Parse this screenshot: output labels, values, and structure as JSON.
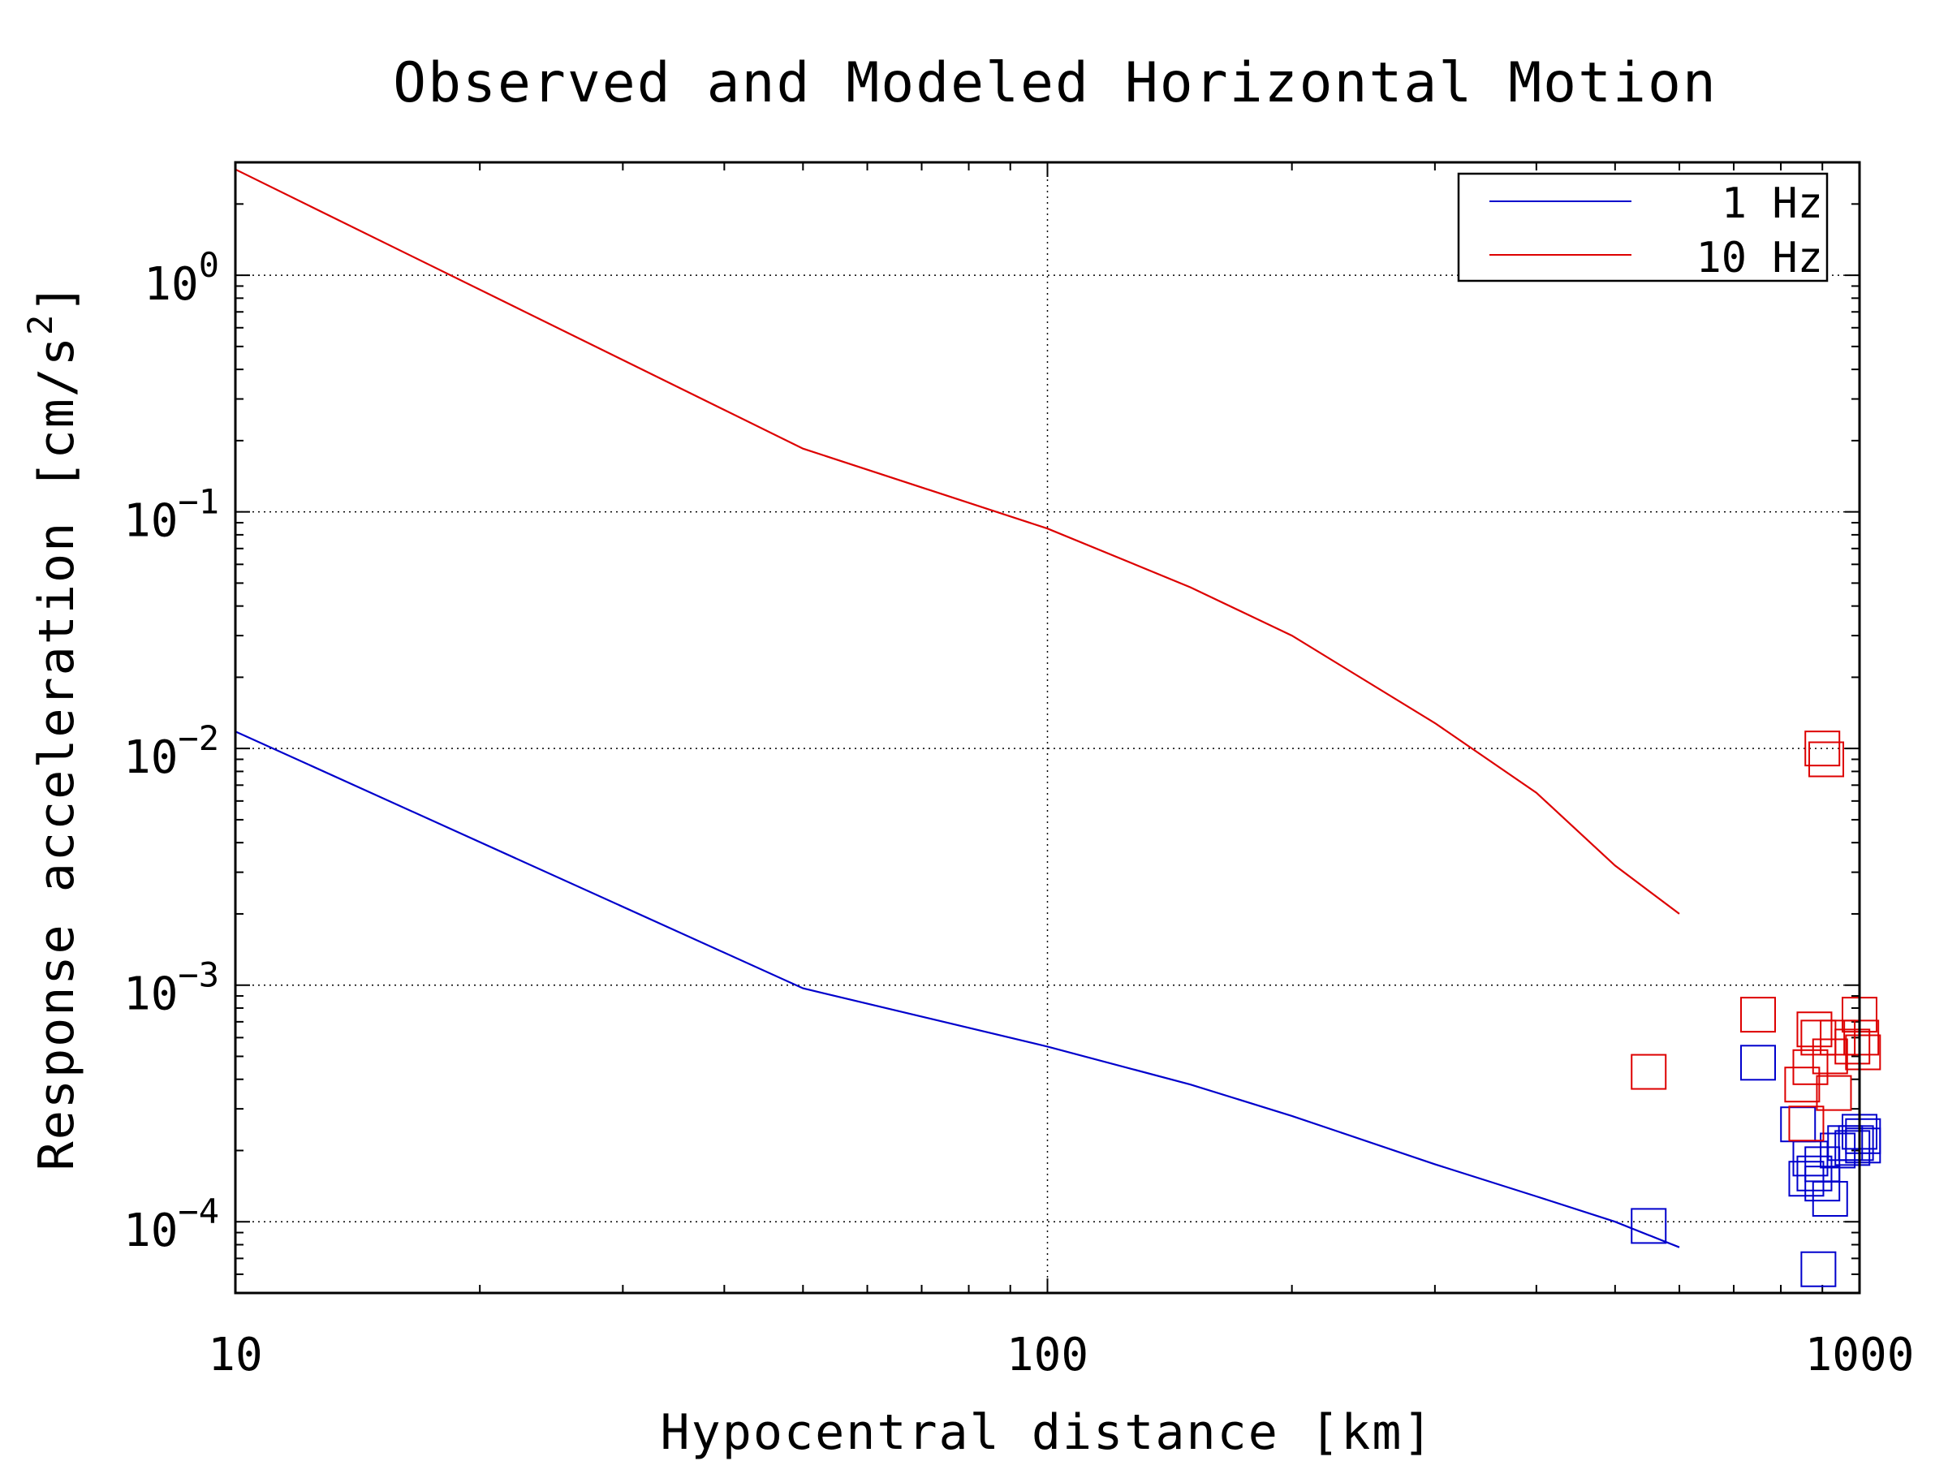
{
  "chart_data": {
    "type": "line",
    "title": "Observed and Modeled Horizontal Motion",
    "xlabel": "Hypocentral distance [km]",
    "ylabel": "Response acceleration [cm/s",
    "ylabel_superscript": "2",
    "ylabel_suffix": "]",
    "xscale": "log",
    "yscale": "log",
    "xlim": [
      10,
      1000
    ],
    "ylim": [
      5e-05,
      3
    ],
    "x_ticks": [
      {
        "value": 10,
        "label": "10"
      },
      {
        "value": 100,
        "label": "100"
      },
      {
        "value": 1000,
        "label": "1000"
      }
    ],
    "y_ticks": [
      {
        "value": 0.0001,
        "base": "10",
        "exp": "−4"
      },
      {
        "value": 0.001,
        "base": "10",
        "exp": "−3"
      },
      {
        "value": 0.01,
        "base": "10",
        "exp": "−2"
      },
      {
        "value": 0.1,
        "base": "10",
        "exp": "−1"
      },
      {
        "value": 1,
        "base": "10",
        "exp": "0"
      }
    ],
    "grid": true,
    "legend_position": "top-right",
    "series": [
      {
        "name": "1 Hz",
        "color": "#0000cc",
        "kind": "line",
        "x": [
          10,
          50,
          100,
          150,
          200,
          300,
          400,
          500,
          600
        ],
        "y": [
          0.0118,
          0.00097,
          0.00055,
          0.00038,
          0.00028,
          0.000175,
          0.000128,
          0.0001,
          7.8e-05
        ]
      },
      {
        "name": "10 Hz",
        "color": "#dd0000",
        "kind": "line",
        "x": [
          10,
          50,
          100,
          150,
          200,
          300,
          400,
          500,
          600
        ],
        "y": [
          2.8,
          0.185,
          0.085,
          0.048,
          0.03,
          0.0128,
          0.0065,
          0.0032,
          0.002
        ]
      }
    ],
    "observations": [
      {
        "series": "1 Hz",
        "color": "#0000cc",
        "marker": "square",
        "x": [
          550,
          750,
          840,
          860,
          870,
          880,
          890,
          900,
          900,
          920,
          940,
          960,
          980,
          990,
          1000,
          1010,
          1010
        ],
        "y": [
          9.6e-05,
          0.00047,
          0.000258,
          0.000152,
          0.000185,
          0.00016,
          6.3e-05,
          0.000175,
          0.000145,
          0.000125,
          0.0002,
          0.000215,
          0.000205,
          0.000215,
          0.00024,
          0.00023,
          0.00021
        ]
      },
      {
        "series": "10 Hz",
        "color": "#dd0000",
        "marker": "square",
        "x": [
          550,
          750,
          850,
          860,
          870,
          880,
          890,
          900,
          910,
          920,
          930,
          940,
          980,
          1000,
          1005,
          1010
        ],
        "y": [
          0.00043,
          0.00075,
          0.00038,
          0.00026,
          0.00045,
          0.00065,
          0.0006,
          0.01,
          0.009,
          0.0005,
          0.00035,
          0.0006,
          0.00055,
          0.00075,
          0.0006,
          0.00052
        ]
      }
    ]
  }
}
